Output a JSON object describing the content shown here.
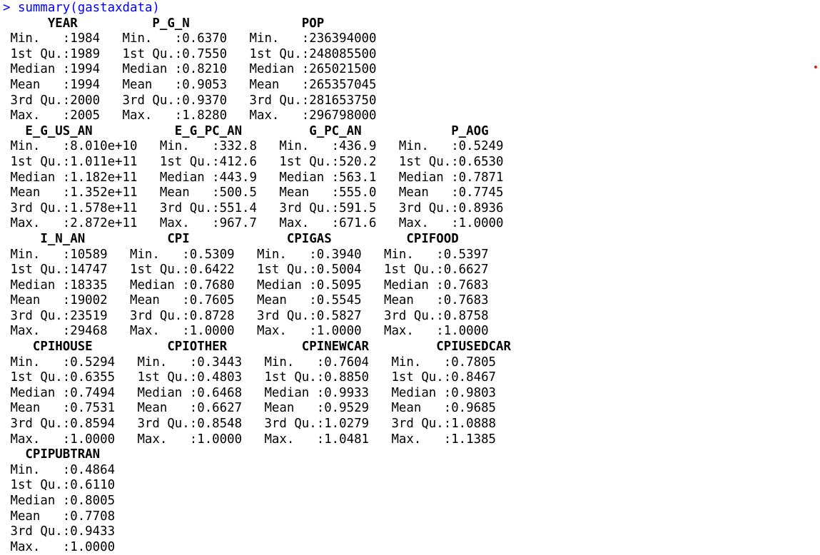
{
  "console": {
    "prompt": ">",
    "command": "summary(gastaxdata)",
    "blocks": [
      {
        "header": "      YEAR          P_G_N               POP           ",
        "rows": [
          " Min.   :1984   Min.   :0.6370   Min.   :236394000  ",
          " 1st Qu.:1989   1st Qu.:0.7550   1st Qu.:248085500  ",
          " Median :1994   Median :0.8210   Median :265021500  ",
          " Mean   :1994   Mean   :0.9053   Mean   :265357045  ",
          " 3rd Qu.:2000   3rd Qu.:0.9370   3rd Qu.:281653750  ",
          " Max.   :2005   Max.   :1.8280   Max.   :296798000  "
        ]
      },
      {
        "header": "   E_G_US_AN           E_G_PC_AN         G_PC_AN            P_AOG       ",
        "rows": [
          " Min.   :8.010e+10   Min.   :332.8   Min.   :436.9   Min.   :0.5249  ",
          " 1st Qu.:1.011e+11   1st Qu.:412.6   1st Qu.:520.2   1st Qu.:0.6530  ",
          " Median :1.182e+11   Median :443.9   Median :563.1   Median :0.7871  ",
          " Mean   :1.352e+11   Mean   :500.5   Mean   :555.0   Mean   :0.7745  ",
          " 3rd Qu.:1.578e+11   3rd Qu.:551.4   3rd Qu.:591.5   3rd Qu.:0.8936  ",
          " Max.   :2.872e+11   Max.   :967.7   Max.   :671.6   Max.   :1.0000  "
        ]
      },
      {
        "header": "     I_N_AN           CPI             CPIGAS          CPIFOOD      ",
        "rows": [
          " Min.   :10589   Min.   :0.5309   Min.   :0.3940   Min.   :0.5397  ",
          " 1st Qu.:14747   1st Qu.:0.6422   1st Qu.:0.5004   1st Qu.:0.6627  ",
          " Median :18335   Median :0.7680   Median :0.5095   Median :0.7683  ",
          " Mean   :19002   Mean   :0.7605   Mean   :0.5545   Mean   :0.7683  ",
          " 3rd Qu.:23519   3rd Qu.:0.8728   3rd Qu.:0.5827   3rd Qu.:0.8758  ",
          " Max.   :29468   Max.   :1.0000   Max.   :1.0000   Max.   :1.0000  "
        ]
      },
      {
        "header": "    CPIHOUSE          CPIOTHER          CPINEWCAR         CPIUSEDCAR    ",
        "rows": [
          " Min.   :0.5294   Min.   :0.3443   Min.   :0.7604   Min.   :0.7805  ",
          " 1st Qu.:0.6355   1st Qu.:0.4803   1st Qu.:0.8850   1st Qu.:0.8467  ",
          " Median :0.7494   Median :0.6468   Median :0.9933   Median :0.9803  ",
          " Mean   :0.7531   Mean   :0.6627   Mean   :0.9529   Mean   :0.9685  ",
          " 3rd Qu.:0.8594   3rd Qu.:0.8548   3rd Qu.:1.0279   3rd Qu.:1.0888  ",
          " Max.   :1.0000   Max.   :1.0000   Max.   :1.0481   Max.   :1.1385  "
        ]
      },
      {
        "header": "   CPIPUBTRAN    ",
        "rows": [
          " Min.   :0.4864  ",
          " 1st Qu.:0.6110  ",
          " Median :0.8005  ",
          " Mean   :0.7708  ",
          " 3rd Qu.:0.9433  ",
          " Max.   :1.0000  "
        ]
      }
    ]
  },
  "colors": {
    "command": "#0000ff",
    "output": "#000000",
    "background": "#ffffff",
    "dot": "#e02020"
  }
}
